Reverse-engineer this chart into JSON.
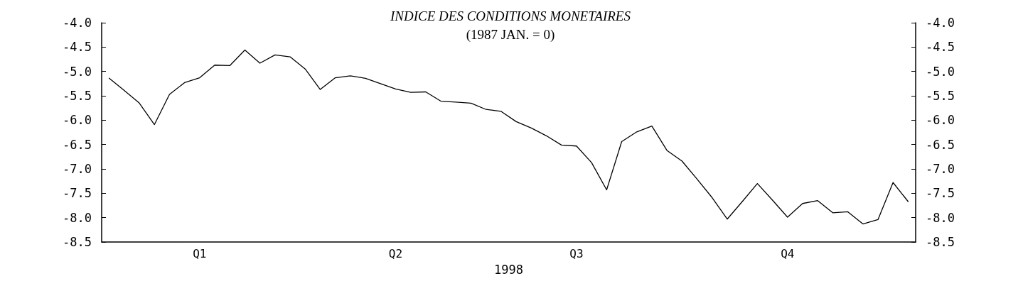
{
  "chart_data": {
    "type": "line",
    "title": "INDICE DES CONDITIONS MONETAIRES",
    "subtitle": "(1987 JAN. = 0)",
    "xlabel": "1998",
    "categories": [
      null,
      null,
      null,
      null,
      null,
      null,
      "Q1",
      null,
      null,
      null,
      null,
      null,
      null,
      null,
      null,
      null,
      null,
      null,
      null,
      "Q2",
      null,
      null,
      null,
      null,
      null,
      null,
      null,
      null,
      null,
      null,
      null,
      "Q3",
      null,
      null,
      null,
      null,
      null,
      null,
      null,
      null,
      null,
      null,
      null,
      null,
      null,
      "Q4",
      null,
      null,
      null,
      null,
      null,
      null,
      null,
      null
    ],
    "series": [
      {
        "color": "#000000",
        "values": [
          -5.14,
          -5.39,
          -5.65,
          -6.09,
          -5.47,
          -5.23,
          -5.13,
          -4.87,
          -4.88,
          -4.56,
          -4.83,
          -4.66,
          -4.7,
          -4.95,
          -5.37,
          -5.13,
          -5.09,
          -5.14,
          -5.25,
          -5.36,
          -5.43,
          -5.42,
          -5.61,
          -5.63,
          -5.65,
          -5.78,
          -5.82,
          -6.03,
          -6.16,
          -6.32,
          -6.51,
          -6.53,
          -6.87,
          -7.43,
          -6.44,
          -6.24,
          -6.12,
          -6.62,
          -6.84,
          -7.21,
          -7.59,
          -8.03,
          -7.67,
          -7.3,
          -7.64,
          -7.99,
          -7.71,
          -7.65,
          -7.9,
          -7.88,
          -8.13,
          -8.04,
          -7.28,
          -7.67
        ]
      }
    ],
    "ylim": [
      -8.5,
      -4
    ],
    "yticks": [
      {
        "value": -8.5,
        "label": "-8.5"
      },
      {
        "value": -8,
        "label": "-8.0"
      },
      {
        "value": -7.5,
        "label": "-7.5"
      },
      {
        "value": -7,
        "label": "-7.0"
      },
      {
        "value": -6.5,
        "label": "-6.5"
      },
      {
        "value": -6,
        "label": "-6.0"
      },
      {
        "value": -5.5,
        "label": "-5.5"
      },
      {
        "value": -5,
        "label": "-5.0"
      },
      {
        "value": -4.5,
        "label": "-4.5"
      },
      {
        "value": -4,
        "label": "-4.0"
      }
    ],
    "y2lim": [
      -8.5,
      -4
    ],
    "y2ticks": [
      {
        "value": -8.5,
        "label": "-8.5"
      },
      {
        "value": -8,
        "label": "-8.0"
      },
      {
        "value": -7.5,
        "label": "-7.5"
      },
      {
        "value": -7,
        "label": "-7.0"
      },
      {
        "value": -6.5,
        "label": "-6.5"
      },
      {
        "value": -6,
        "label": "-6.0"
      },
      {
        "value": -5.5,
        "label": "-5.5"
      },
      {
        "value": -5,
        "label": "-5.0"
      },
      {
        "value": -4.5,
        "label": "-4.5"
      },
      {
        "value": -4,
        "label": "-4.0"
      }
    ],
    "grid": false,
    "marker": "none",
    "line_style": "solid"
  }
}
